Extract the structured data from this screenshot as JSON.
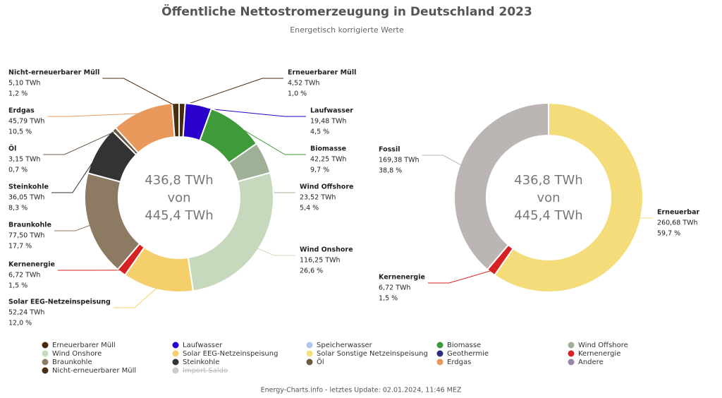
{
  "title": "Öffentliche Nettostromerzeugung in Deutschland 2023",
  "subtitle": "Energetisch korrigierte Werte",
  "chart_data": [
    {
      "type": "donut",
      "center_label": [
        "436,8 TWh",
        "von",
        "445,4 TWh"
      ],
      "categories": [
        "Erneuerbarer Müll",
        "Laufwasser",
        "Biomasse",
        "Wind Offshore",
        "Wind Onshore",
        "Solar EEG-Netzeinspeisung",
        "Kernenergie",
        "Braunkohle",
        "Steinkohle",
        "Öl",
        "Erdgas",
        "Nicht-erneuerbarer Müll"
      ],
      "values": [
        4.52,
        19.48,
        42.25,
        23.52,
        116.25,
        52.24,
        6.72,
        77.5,
        36.05,
        3.15,
        45.79,
        5.1
      ],
      "value_labels": [
        "4,52 TWh",
        "19,48 TWh",
        "42,25 TWh",
        "23,52 TWh",
        "116,25 TWh",
        "52,24 TWh",
        "6,72 TWh",
        "77,50 TWh",
        "36,05 TWh",
        "3,15 TWh",
        "45,79 TWh",
        "5,10 TWh"
      ],
      "shares": [
        1.0,
        4.5,
        9.7,
        5.4,
        26.6,
        12.0,
        1.5,
        17.7,
        8.3,
        0.7,
        10.5,
        1.2
      ],
      "share_labels": [
        "1,0 %",
        "4,5 %",
        "9,7 %",
        "5,4 %",
        "26,6 %",
        "12,0 %",
        "1,5 %",
        "17,7 %",
        "8,3 %",
        "0,7 %",
        "10,5 %",
        "1,2 %"
      ],
      "colors": [
        "#4a2a0c",
        "#2a00cc",
        "#3f9a3a",
        "#9fb096",
        "#c6d9bd",
        "#f4cf6b",
        "#d62222",
        "#8d7a62",
        "#333333",
        "#6b5a44",
        "#e8985a",
        "#4a2e10"
      ]
    },
    {
      "type": "donut",
      "center_label": [
        "436,8 TWh",
        "von",
        "445,4 TWh"
      ],
      "categories": [
        "Erneuerbar",
        "Kernenergie",
        "Fossil"
      ],
      "values": [
        260.68,
        6.72,
        169.38
      ],
      "value_labels": [
        "260,68 TWh",
        "6,72 TWh",
        "169,38 TWh"
      ],
      "shares": [
        59.7,
        1.5,
        38.8
      ],
      "share_labels": [
        "59,7 %",
        "1,5 %",
        "38,8 %"
      ],
      "colors": [
        "#f4dc7b",
        "#d62222",
        "#bbb6b3"
      ]
    }
  ],
  "legend": [
    {
      "name": "Erneuerbarer Müll",
      "color": "#4a2a0c"
    },
    {
      "name": "Laufwasser",
      "color": "#2a00cc"
    },
    {
      "name": "Speicherwasser",
      "color": "#aec7f0"
    },
    {
      "name": "Biomasse",
      "color": "#3f9a3a"
    },
    {
      "name": "Wind Offshore",
      "color": "#9fb096"
    },
    {
      "name": "Wind Onshore",
      "color": "#c6d9bd"
    },
    {
      "name": "Solar EEG-Netzeinspeisung",
      "color": "#f4cf6b"
    },
    {
      "name": "Solar Sonstige Netzeinspeisung",
      "color": "#f4e07a"
    },
    {
      "name": "Geothermie",
      "color": "#2e2a80"
    },
    {
      "name": "Kernenergie",
      "color": "#d62222"
    },
    {
      "name": "Braunkohle",
      "color": "#8d7a62"
    },
    {
      "name": "Steinkohle",
      "color": "#333333"
    },
    {
      "name": "Öl",
      "color": "#6b5a44"
    },
    {
      "name": "Erdgas",
      "color": "#e8985a"
    },
    {
      "name": "Andere",
      "color": "#9a86a8"
    },
    {
      "name": "Nicht-erneuerbarer Müll",
      "color": "#4a2e10"
    },
    {
      "name": "Import Saldo",
      "color": "#cccccc",
      "disabled": true
    }
  ],
  "footer": "Energy-Charts.info - letztes Update: 02.01.2024, 11:46 MEZ"
}
